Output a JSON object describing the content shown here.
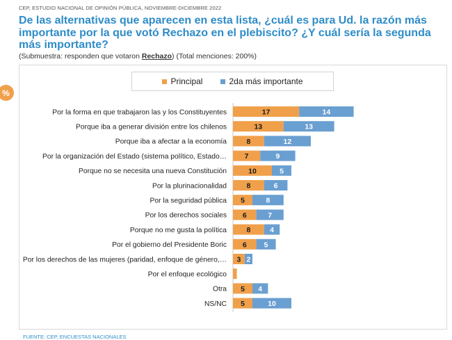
{
  "header": {
    "text": "CEP, ESTUDIO NACIONAL DE OPINIÓN PÚBLICA, NOVIEMBRE-DICIEMBRE 2022"
  },
  "title": "De las alternativas que aparecen en esta lista, ¿cuál es para Ud. la razón más importante por la que votó Rechazo en el plebiscito? ¿Y cuál sería la segunda más importante?",
  "subtitle": {
    "before": "(Submuestra: responden que votaron ",
    "highlight": "Rechazo",
    "after": ") (Total menciones: 200%)"
  },
  "badge": "%",
  "footer": "FUENTE: CEP, ENCUESTAS NACIONALES",
  "colors": {
    "principal": "#f0a04b",
    "segunda": "#6a9fd1"
  },
  "chart_data": {
    "type": "bar",
    "orientation": "horizontal",
    "stacked": true,
    "legend_position": "top",
    "categories": [
      "Por la forma en que trabajaron las y los Constituyentes",
      "Porque iba a generar división entre los chilenos",
      "Porque iba a afectar a la economía",
      "Por la organización del Estado (sistema político, Estado…",
      "Porque no se necesita una nueva Constitución",
      "Por la plurinacionalidad",
      "Por la seguridad pública",
      "Por los derechos sociales",
      "Porque no me gusta la política",
      "Por el gobierno del Presidente Boric",
      "Por los derechos de las mujeres (paridad, enfoque de género,…",
      "Por el enfoque ecológico",
      "Otra",
      "NS/NC"
    ],
    "series": [
      {
        "name": "Principal",
        "values": [
          17,
          13,
          8,
          7,
          10,
          8,
          5,
          6,
          8,
          6,
          3,
          1,
          5,
          5
        ],
        "labels": [
          "17",
          "13",
          "8",
          "7",
          "10",
          "8",
          "5",
          "6",
          "8",
          "6",
          "3",
          "",
          "5",
          "5"
        ]
      },
      {
        "name": "2da más importante",
        "values": [
          14,
          13,
          12,
          9,
          5,
          6,
          8,
          7,
          4,
          5,
          2,
          0,
          4,
          10
        ],
        "labels": [
          "14",
          "13",
          "12",
          "9",
          "5",
          "6",
          "8",
          "7",
          "4",
          "5",
          "2",
          "",
          "4",
          "10"
        ]
      }
    ]
  }
}
